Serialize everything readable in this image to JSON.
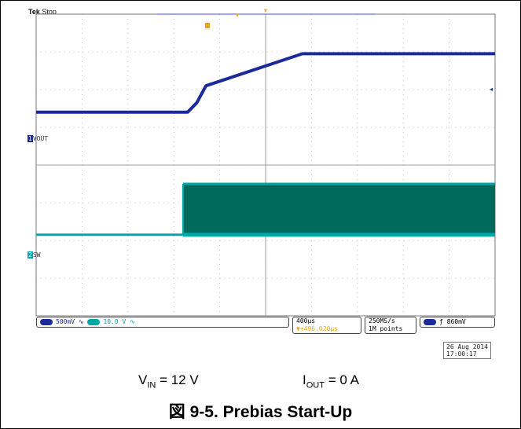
{
  "scope": {
    "brand": "Tek",
    "state": "Stop",
    "ch1_label": "VOUT",
    "ch2_label": "SW",
    "ch1_scale": "500mV",
    "ch2_scale": "10.0 V",
    "timebase": "400µs",
    "trigger_pos": "+496.020µs",
    "sample_rate": "250MS/s",
    "record_length": "1M points",
    "trigger_level": "860mV",
    "date": "26 Aug 2014",
    "time": "17:00:17",
    "colors": {
      "ch1": "#1a2a9c",
      "ch2": "#00a7a7",
      "ch2_fill": "#006a5c",
      "trigger": "#f0a020",
      "grid": "#999999"
    }
  },
  "conditions": {
    "vin_base": "V",
    "vin_sub": "IN",
    "vin_value": " = 12 V",
    "iout_base": "I",
    "iout_sub": "OUT",
    "iout_value": " = 0 A"
  },
  "caption": "図 9-5. Prebias Start-Up",
  "chart_data": {
    "type": "line",
    "title": "",
    "x_units": "divisions",
    "xlim": [
      0,
      10
    ],
    "ylim": [
      -4,
      4
    ],
    "series": [
      {
        "name": "VOUT",
        "x": [
          0,
          3.3,
          3.5,
          3.7,
          5.8,
          10
        ],
        "y": [
          1.4,
          1.4,
          1.65,
          2.1,
          2.95,
          2.95
        ]
      },
      {
        "name": "SW",
        "x": [
          0,
          3.2,
          3.2,
          10
        ],
        "y": [
          -1.85,
          -1.85,
          -0.5,
          -0.5
        ],
        "band_low": -1.85
      }
    ]
  }
}
